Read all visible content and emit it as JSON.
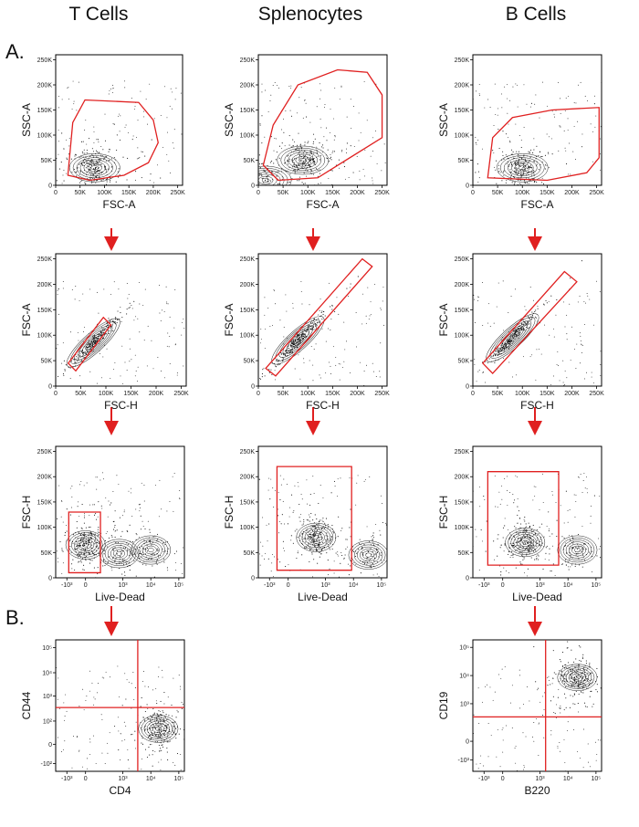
{
  "columns": [
    "T Cells",
    "Splenocytes",
    "B Cells"
  ],
  "sections": [
    "A.",
    "B."
  ],
  "colors": {
    "gate": "#e02020",
    "arrow": "#e02020",
    "axis": "#000000",
    "dots": "#111111"
  },
  "chart_data": [
    {
      "id": "t-fsc-ssc",
      "type": "scatter",
      "xlabel": "FSC-A",
      "ylabel": "SSC-A",
      "scale": "linear",
      "xticks": [
        "0",
        "50K",
        "100K",
        "150K",
        "200K",
        "250K"
      ],
      "yticks": [
        "0",
        "50K",
        "100K",
        "150K",
        "200K",
        "250K"
      ],
      "xlim": [
        0,
        260000
      ],
      "ylim": [
        0,
        260000
      ],
      "population_centers": [
        [
          80000,
          35000
        ]
      ],
      "gate_polygon": [
        [
          25000,
          20000
        ],
        [
          35000,
          125000
        ],
        [
          60000,
          170000
        ],
        [
          170000,
          165000
        ],
        [
          200000,
          130000
        ],
        [
          210000,
          85000
        ],
        [
          190000,
          45000
        ],
        [
          140000,
          20000
        ],
        [
          70000,
          10000
        ]
      ]
    },
    {
      "id": "s-fsc-ssc",
      "type": "scatter",
      "xlabel": "FSC-A",
      "ylabel": "SSC-A",
      "scale": "linear",
      "xticks": [
        "0",
        "50K",
        "100K",
        "150K",
        "200K",
        "250K"
      ],
      "yticks": [
        "0",
        "50K",
        "100K",
        "150K",
        "200K",
        "250K"
      ],
      "xlim": [
        0,
        260000
      ],
      "ylim": [
        0,
        260000
      ],
      "population_centers": [
        [
          90000,
          50000
        ],
        [
          15000,
          10000
        ]
      ],
      "gate_polygon": [
        [
          10000,
          40000
        ],
        [
          30000,
          120000
        ],
        [
          80000,
          200000
        ],
        [
          160000,
          230000
        ],
        [
          220000,
          225000
        ],
        [
          250000,
          180000
        ],
        [
          250000,
          95000
        ],
        [
          120000,
          15000
        ],
        [
          40000,
          10000
        ]
      ]
    },
    {
      "id": "b-fsc-ssc",
      "type": "scatter",
      "xlabel": "FSC-A",
      "ylabel": "SSC-A",
      "scale": "linear",
      "xticks": [
        "0",
        "50K",
        "100K",
        "150K",
        "200K",
        "250K"
      ],
      "yticks": [
        "0",
        "50K",
        "100K",
        "150K",
        "200K",
        "250K"
      ],
      "xlim": [
        0,
        260000
      ],
      "ylim": [
        0,
        260000
      ],
      "population_centers": [
        [
          100000,
          35000
        ]
      ],
      "gate_polygon": [
        [
          30000,
          15000
        ],
        [
          40000,
          95000
        ],
        [
          80000,
          135000
        ],
        [
          160000,
          150000
        ],
        [
          255000,
          155000
        ],
        [
          255000,
          55000
        ],
        [
          230000,
          25000
        ],
        [
          150000,
          10000
        ]
      ]
    },
    {
      "id": "t-fsch-fsca",
      "type": "scatter",
      "xlabel": "FSC-H",
      "ylabel": "FSC-A",
      "scale": "linear",
      "xticks": [
        "0",
        "50K",
        "100K",
        "150K",
        "200K",
        "250K"
      ],
      "yticks": [
        "0",
        "50K",
        "100K",
        "150K",
        "200K",
        "250K"
      ],
      "xlim": [
        0,
        260000
      ],
      "ylim": [
        0,
        260000
      ],
      "population_centers": [
        [
          75000,
          85000
        ]
      ],
      "gate_polygon": [
        [
          25000,
          45000
        ],
        [
          95000,
          135000
        ],
        [
          110000,
          120000
        ],
        [
          40000,
          30000
        ]
      ]
    },
    {
      "id": "s-fsch-fsca",
      "type": "scatter",
      "xlabel": "FSC-H",
      "ylabel": "FSC-A",
      "scale": "linear",
      "xticks": [
        "0",
        "50K",
        "100K",
        "150K",
        "200K",
        "250K"
      ],
      "yticks": [
        "0",
        "50K",
        "100K",
        "150K",
        "200K",
        "250K"
      ],
      "xlim": [
        0,
        260000
      ],
      "ylim": [
        0,
        260000
      ],
      "population_centers": [
        [
          80000,
          90000
        ]
      ],
      "gate_polygon": [
        [
          15000,
          35000
        ],
        [
          210000,
          250000
        ],
        [
          230000,
          235000
        ],
        [
          35000,
          20000
        ]
      ]
    },
    {
      "id": "b-fsch-fsca",
      "type": "scatter",
      "xlabel": "FSC-H",
      "ylabel": "FSC-A",
      "scale": "linear",
      "xticks": [
        "0",
        "50K",
        "100K",
        "150K",
        "200K",
        "250K"
      ],
      "yticks": [
        "0",
        "50K",
        "100K",
        "150K",
        "200K",
        "250K"
      ],
      "xlim": [
        0,
        260000
      ],
      "ylim": [
        0,
        260000
      ],
      "population_centers": [
        [
          80000,
          95000
        ]
      ],
      "gate_polygon": [
        [
          20000,
          45000
        ],
        [
          185000,
          225000
        ],
        [
          210000,
          205000
        ],
        [
          40000,
          25000
        ]
      ]
    },
    {
      "id": "t-ld-fsch",
      "type": "scatter",
      "xlabel": "Live-Dead",
      "ylabel": "FSC-H",
      "scale": "biex-x",
      "xticks": [
        "-10³",
        "0",
        "10³",
        "10⁴",
        "10⁵"
      ],
      "yticks": [
        "0",
        "50K",
        "100K",
        "150K",
        "200K",
        "250K"
      ],
      "xlim": [
        -1.6,
        5.3
      ],
      "ylim": [
        0,
        260000
      ],
      "population_centers": [
        [
          0,
          65000
        ],
        [
          1.8,
          48000
        ],
        [
          3.5,
          55000
        ]
      ],
      "gate_polygon": [
        [
          -0.9,
          10000
        ],
        [
          -0.9,
          130000
        ],
        [
          0.8,
          130000
        ],
        [
          0.8,
          10000
        ]
      ]
    },
    {
      "id": "s-ld-fsch",
      "type": "scatter",
      "xlabel": "Live-Dead",
      "ylabel": "FSC-H",
      "scale": "biex-x",
      "xticks": [
        "-10³",
        "0",
        "10³",
        "10⁴",
        "10⁵"
      ],
      "yticks": [
        "0",
        "50K",
        "100K",
        "150K",
        "200K",
        "250K"
      ],
      "xlim": [
        -1.6,
        5.3
      ],
      "ylim": [
        0,
        260000
      ],
      "population_centers": [
        [
          1.5,
          80000
        ],
        [
          4.3,
          45000
        ]
      ],
      "gate_polygon": [
        [
          -0.6,
          15000
        ],
        [
          -0.6,
          220000
        ],
        [
          3.4,
          220000
        ],
        [
          3.4,
          15000
        ]
      ]
    },
    {
      "id": "b-ld-fsch",
      "type": "scatter",
      "xlabel": "Live-Dead",
      "ylabel": "FSC-H",
      "scale": "biex-x",
      "xticks": [
        "-10³",
        "0",
        "10³",
        "10⁴",
        "10⁵"
      ],
      "yticks": [
        "0",
        "50K",
        "100K",
        "150K",
        "200K",
        "250K"
      ],
      "xlim": [
        -1.6,
        5.3
      ],
      "ylim": [
        0,
        260000
      ],
      "population_centers": [
        [
          1.2,
          70000
        ],
        [
          4.0,
          55000
        ]
      ],
      "gate_polygon": [
        [
          -0.8,
          25000
        ],
        [
          -0.8,
          210000
        ],
        [
          3.0,
          210000
        ],
        [
          3.0,
          25000
        ]
      ]
    },
    {
      "id": "t-cd4-cd44",
      "type": "scatter",
      "xlabel": "CD4",
      "ylabel": "CD44",
      "scale": "biex-xy",
      "xticks": [
        "-10³",
        "0",
        "10³",
        "10⁴",
        "10⁵"
      ],
      "yticks": [
        "-10²",
        "0",
        "10²",
        "10³",
        "10⁴",
        "10⁵"
      ],
      "xlim": [
        -1.6,
        5.3
      ],
      "ylim": [
        -1.4,
        5.4
      ],
      "population_centers": [
        [
          3.9,
          0.8
        ]
      ],
      "quadrant": [
        2.8,
        1.9
      ]
    },
    {
      "id": "b-b220-cd19",
      "type": "scatter",
      "xlabel": "B220",
      "ylabel": "CD19",
      "scale": "biex-xy",
      "xticks": [
        "-10³",
        "0",
        "10³",
        "10⁴",
        "10⁵"
      ],
      "yticks": [
        "-10³",
        "0",
        "10³",
        "10⁴",
        "10⁵"
      ],
      "xlim": [
        -1.6,
        5.3
      ],
      "ylim": [
        -1.6,
        5.4
      ],
      "population_centers": [
        [
          4.0,
          3.4
        ]
      ],
      "quadrant": [
        2.3,
        1.3
      ]
    }
  ]
}
